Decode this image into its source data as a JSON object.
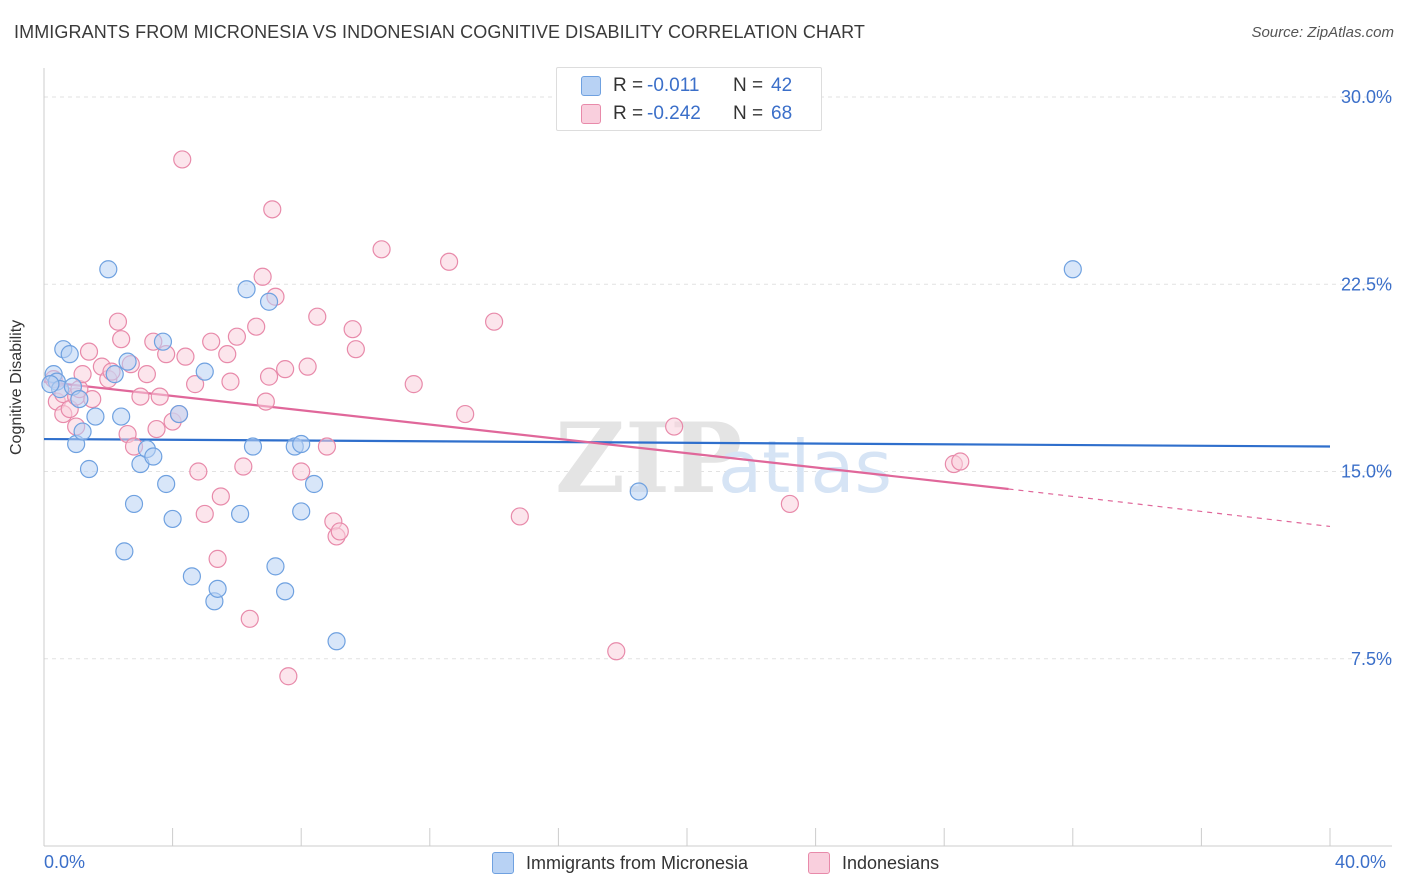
{
  "title": "IMMIGRANTS FROM MICRONESIA VS INDONESIAN COGNITIVE DISABILITY CORRELATION CHART",
  "source": "Source: ZipAtlas.com",
  "watermark": {
    "zip": "ZIP",
    "atlas": "atlas"
  },
  "legend": {
    "series": [
      {
        "r_label": "R =",
        "r_value": "-0.011",
        "n_label": "N =",
        "n_value": "42",
        "color": "#a9c8f2"
      },
      {
        "r_label": "R =",
        "r_value": "-0.242",
        "n_label": "N =",
        "n_value": "68",
        "color": "#f6b9cd"
      }
    ]
  },
  "chart_data": {
    "type": "scatter",
    "xlabel": "",
    "ylabel": "Cognitive Disability",
    "xlim": [
      0,
      40
    ],
    "ylim": [
      0,
      30.8
    ],
    "x_tick_labels": [
      "0.0%",
      "40.0%"
    ],
    "y_ticks": [
      7.5,
      15.0,
      22.5,
      30.0
    ],
    "y_tick_labels": [
      "7.5%",
      "15.0%",
      "22.5%",
      "30.0%"
    ],
    "grid": true,
    "legend_position": "top-center",
    "series": [
      {
        "name": "Immigrants from Micronesia",
        "color": "#6fa1e0",
        "fill": "#b8d2f4",
        "trend": {
          "x": [
            0,
            40
          ],
          "y": [
            16.3,
            16.0
          ],
          "color": "#2f6fcc"
        },
        "points": [
          [
            0.3,
            18.9
          ],
          [
            0.4,
            18.6
          ],
          [
            0.5,
            18.3
          ],
          [
            0.6,
            19.9
          ],
          [
            0.8,
            19.7
          ],
          [
            0.9,
            18.4
          ],
          [
            1.0,
            16.1
          ],
          [
            1.1,
            17.9
          ],
          [
            1.2,
            16.6
          ],
          [
            1.4,
            15.1
          ],
          [
            1.6,
            17.2
          ],
          [
            2.0,
            23.1
          ],
          [
            2.2,
            18.9
          ],
          [
            2.4,
            17.2
          ],
          [
            2.5,
            11.8
          ],
          [
            2.6,
            19.4
          ],
          [
            2.8,
            13.7
          ],
          [
            3.0,
            15.3
          ],
          [
            3.2,
            15.9
          ],
          [
            3.4,
            15.6
          ],
          [
            3.7,
            20.2
          ],
          [
            3.8,
            14.5
          ],
          [
            4.0,
            13.1
          ],
          [
            4.2,
            17.3
          ],
          [
            4.6,
            10.8
          ],
          [
            5.0,
            19.0
          ],
          [
            5.3,
            9.8
          ],
          [
            5.4,
            10.3
          ],
          [
            6.1,
            13.3
          ],
          [
            6.3,
            22.3
          ],
          [
            6.5,
            16.0
          ],
          [
            7.0,
            21.8
          ],
          [
            7.2,
            11.2
          ],
          [
            7.5,
            10.2
          ],
          [
            7.8,
            16.0
          ],
          [
            8.0,
            16.1
          ],
          [
            8.0,
            13.4
          ],
          [
            8.4,
            14.5
          ],
          [
            9.1,
            8.2
          ],
          [
            18.5,
            14.2
          ],
          [
            32.0,
            23.1
          ],
          [
            0.2,
            18.5
          ]
        ]
      },
      {
        "name": "Indonesians",
        "color": "#e88aaa",
        "fill": "#f9cfdd",
        "trend": {
          "x": [
            0,
            30
          ],
          "y": [
            18.6,
            14.3
          ],
          "color": "#e0679a"
        },
        "trend_extension": {
          "x": [
            30,
            40
          ],
          "y": [
            14.3,
            12.8
          ]
        },
        "points": [
          [
            0.3,
            18.7
          ],
          [
            0.4,
            17.8
          ],
          [
            0.6,
            18.1
          ],
          [
            0.6,
            17.3
          ],
          [
            0.8,
            17.5
          ],
          [
            1.0,
            18.0
          ],
          [
            1.0,
            16.8
          ],
          [
            1.1,
            18.3
          ],
          [
            1.2,
            18.9
          ],
          [
            1.4,
            19.8
          ],
          [
            1.5,
            17.9
          ],
          [
            1.8,
            19.2
          ],
          [
            2.0,
            18.7
          ],
          [
            2.1,
            19.0
          ],
          [
            2.3,
            21.0
          ],
          [
            2.4,
            20.3
          ],
          [
            2.6,
            16.5
          ],
          [
            2.7,
            19.3
          ],
          [
            2.8,
            16.0
          ],
          [
            3.0,
            18.0
          ],
          [
            3.2,
            18.9
          ],
          [
            3.4,
            20.2
          ],
          [
            3.5,
            16.7
          ],
          [
            3.6,
            18.0
          ],
          [
            3.8,
            19.7
          ],
          [
            4.0,
            17.0
          ],
          [
            4.2,
            17.3
          ],
          [
            4.4,
            19.6
          ],
          [
            4.7,
            18.5
          ],
          [
            4.8,
            15.0
          ],
          [
            5.0,
            13.3
          ],
          [
            5.2,
            20.2
          ],
          [
            5.4,
            11.5
          ],
          [
            5.5,
            14.0
          ],
          [
            5.7,
            19.7
          ],
          [
            5.8,
            18.6
          ],
          [
            6.0,
            20.4
          ],
          [
            6.2,
            15.2
          ],
          [
            6.4,
            9.1
          ],
          [
            6.6,
            20.8
          ],
          [
            6.8,
            22.8
          ],
          [
            6.9,
            17.8
          ],
          [
            7.0,
            18.8
          ],
          [
            7.2,
            22.0
          ],
          [
            7.5,
            19.1
          ],
          [
            7.6,
            6.8
          ],
          [
            8.0,
            15.0
          ],
          [
            8.2,
            19.2
          ],
          [
            8.5,
            21.2
          ],
          [
            8.8,
            16.0
          ],
          [
            9.0,
            13.0
          ],
          [
            9.1,
            12.4
          ],
          [
            9.2,
            12.6
          ],
          [
            9.6,
            20.7
          ],
          [
            9.7,
            19.9
          ],
          [
            10.5,
            23.9
          ],
          [
            11.5,
            18.5
          ],
          [
            12.6,
            23.4
          ],
          [
            13.1,
            17.3
          ],
          [
            14.0,
            21.0
          ],
          [
            14.8,
            13.2
          ],
          [
            17.8,
            7.8
          ],
          [
            19.6,
            16.8
          ],
          [
            23.2,
            13.7
          ],
          [
            28.3,
            15.3
          ],
          [
            28.5,
            15.4
          ],
          [
            7.1,
            25.5
          ],
          [
            4.3,
            27.5
          ]
        ]
      }
    ]
  },
  "bottom_legend": [
    {
      "label": "Immigrants from Micronesia",
      "color": "#b8d2f4",
      "border": "#6fa1e0"
    },
    {
      "label": "Indonesians",
      "color": "#f9cfdd",
      "border": "#e88aaa"
    }
  ]
}
